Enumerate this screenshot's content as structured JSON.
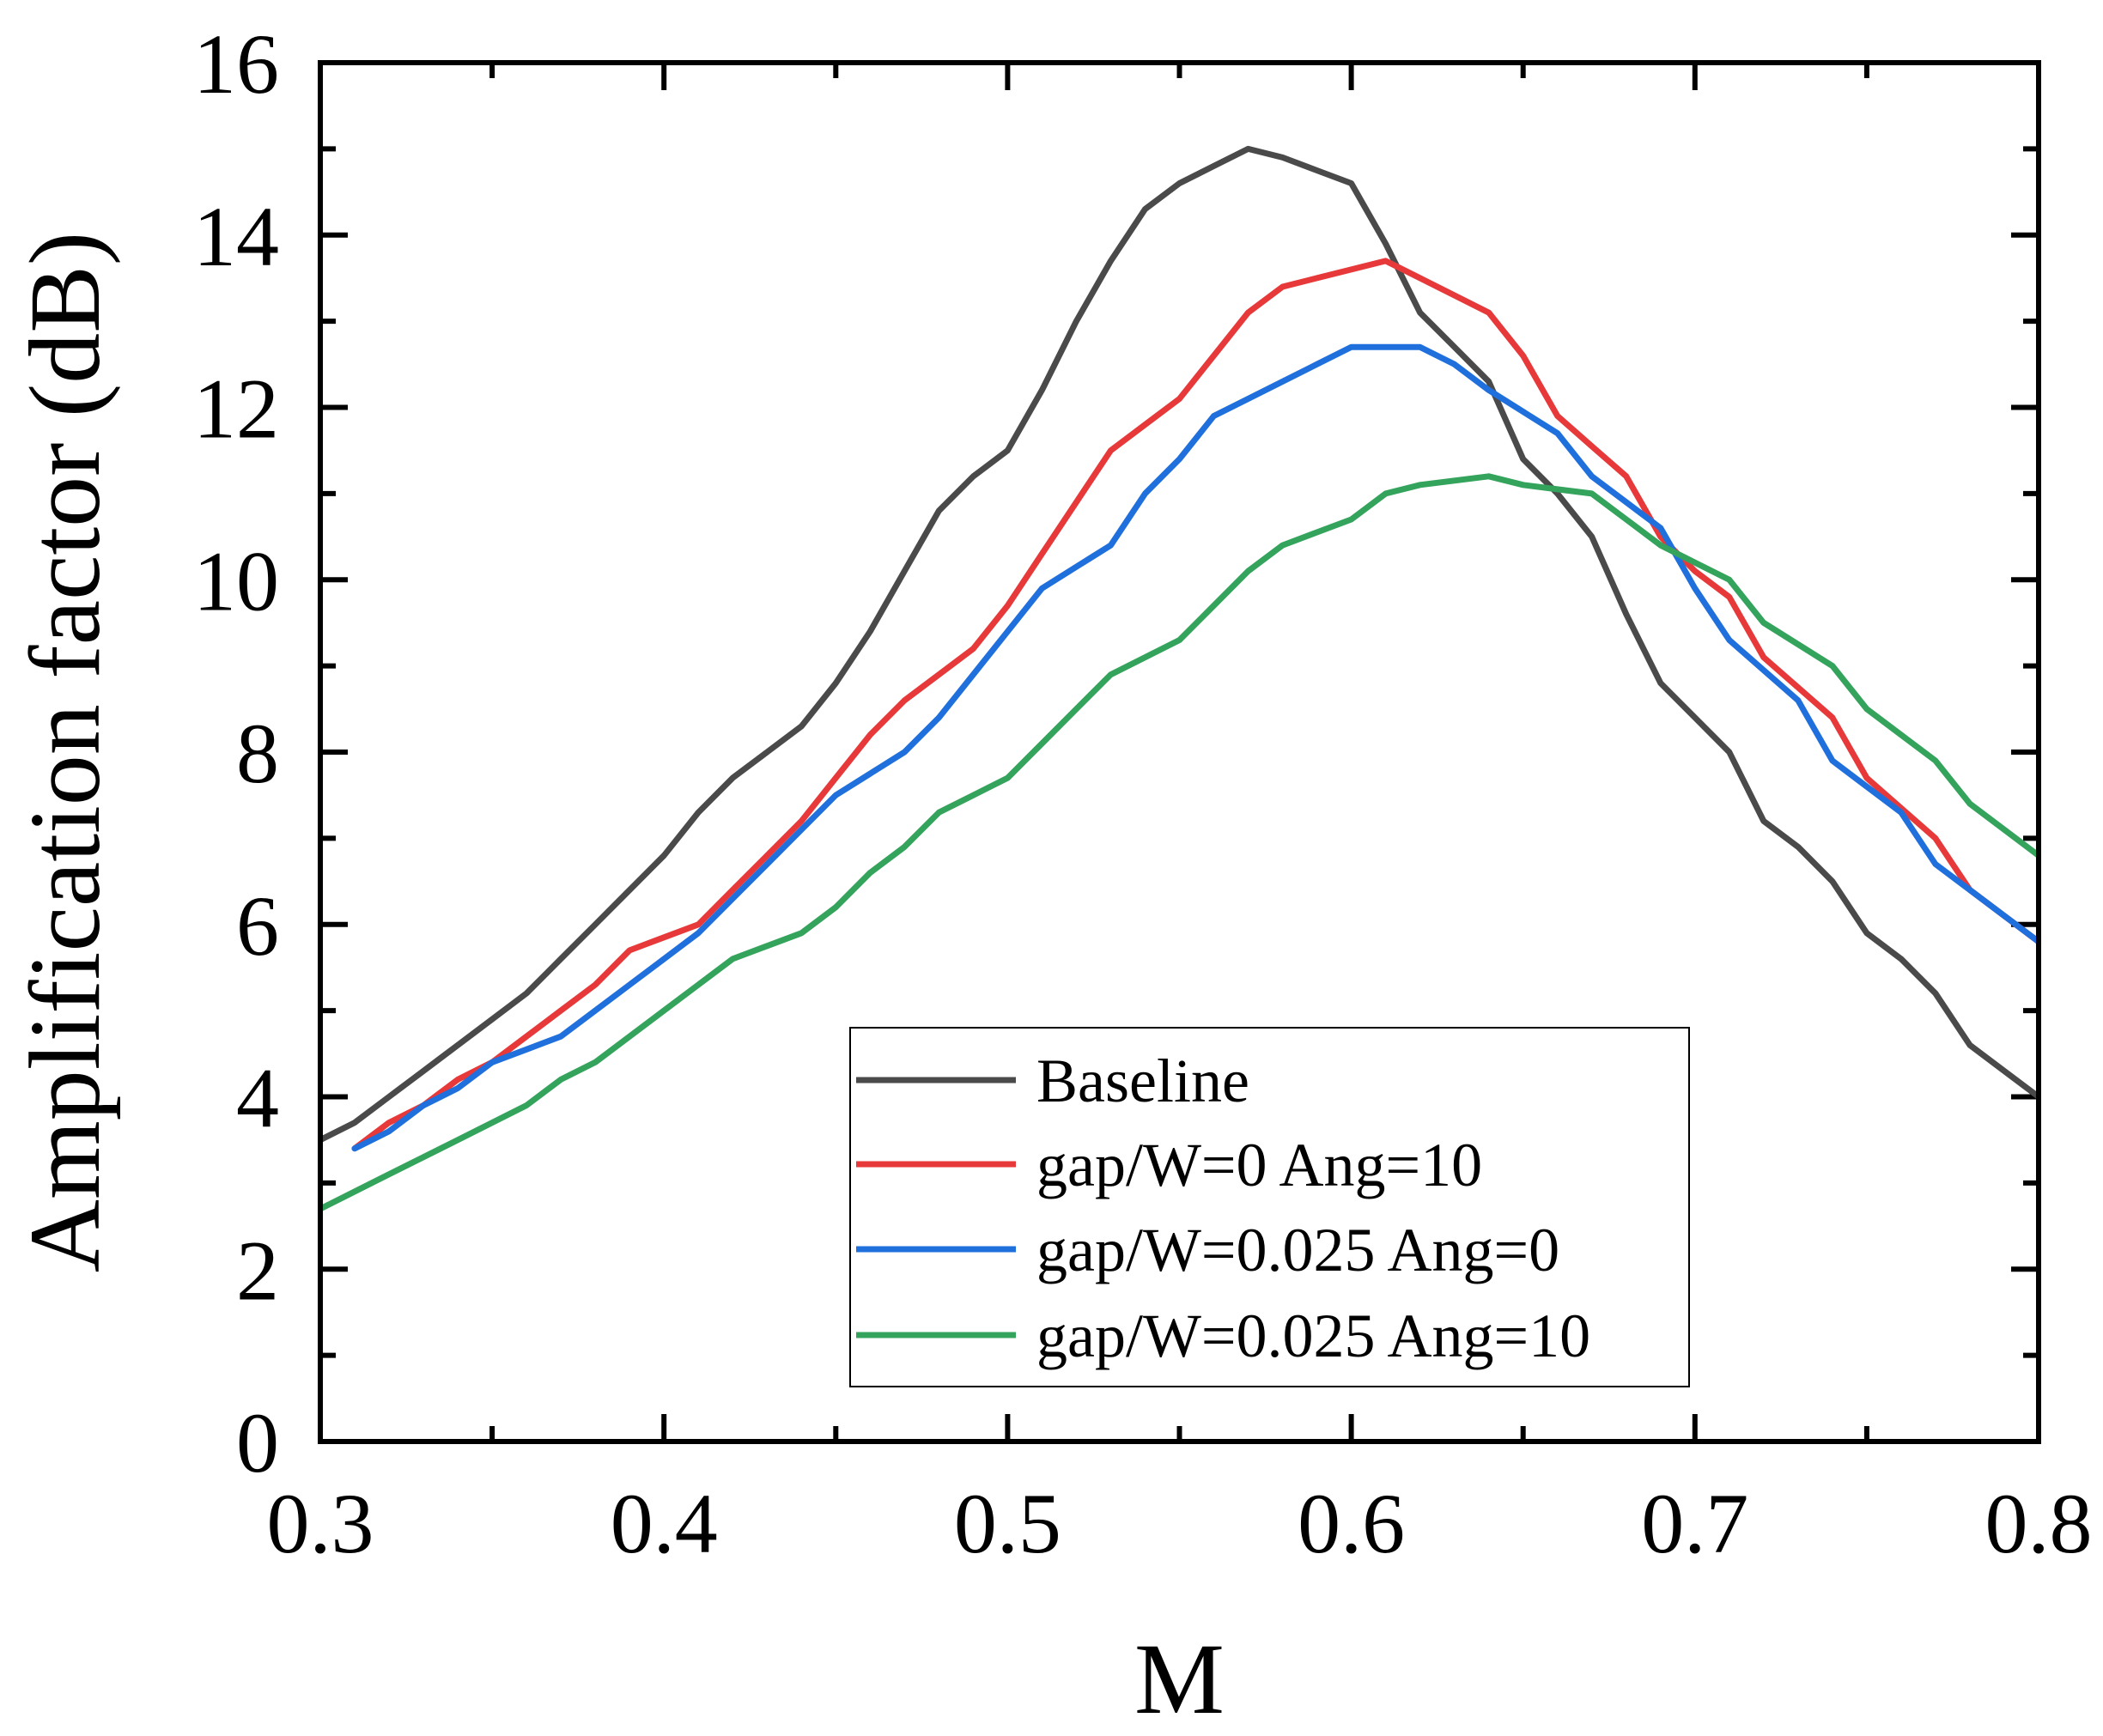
{
  "chart_data": {
    "type": "line",
    "title": "",
    "xlabel": "M",
    "ylabel": "Amplification factor (dB)",
    "xlim": [
      0.3,
      0.8
    ],
    "ylim": [
      0,
      16
    ],
    "xticks": [
      0.3,
      0.4,
      0.5,
      0.6,
      0.7,
      0.8
    ],
    "xtick_labels": [
      "0.3",
      "0.4",
      "0.5",
      "0.6",
      "0.7",
      "0.8"
    ],
    "yticks": [
      0,
      2,
      4,
      6,
      8,
      10,
      12,
      14,
      16
    ],
    "ytick_labels": [
      "0",
      "2",
      "4",
      "6",
      "8",
      "10",
      "12",
      "14",
      "16"
    ],
    "grid": false,
    "legend_position": "bottom-center",
    "series": [
      {
        "name": "Baseline",
        "color": "#4a4a4a",
        "x": [
          0.3,
          0.31,
          0.32,
          0.33,
          0.34,
          0.35,
          0.36,
          0.37,
          0.38,
          0.39,
          0.4,
          0.41,
          0.42,
          0.43,
          0.44,
          0.45,
          0.46,
          0.47,
          0.48,
          0.49,
          0.5,
          0.51,
          0.52,
          0.53,
          0.54,
          0.55,
          0.56,
          0.57,
          0.58,
          0.59,
          0.6,
          0.61,
          0.62,
          0.63,
          0.64,
          0.65,
          0.66,
          0.67,
          0.68,
          0.69,
          0.7,
          0.71,
          0.72,
          0.73,
          0.74,
          0.75,
          0.76,
          0.77,
          0.78,
          0.79,
          0.8
        ],
        "y": [
          3.5,
          3.7,
          4.0,
          4.3,
          4.6,
          4.9,
          5.2,
          5.6,
          6.0,
          6.4,
          6.8,
          7.3,
          7.7,
          8.0,
          8.3,
          8.8,
          9.4,
          10.1,
          10.8,
          11.2,
          11.5,
          12.2,
          13.0,
          13.7,
          14.3,
          14.6,
          14.8,
          15.0,
          14.9,
          14.75,
          14.6,
          13.9,
          13.1,
          12.7,
          12.3,
          11.4,
          11.0,
          10.5,
          9.6,
          8.8,
          8.4,
          8.0,
          7.2,
          6.9,
          6.5,
          5.9,
          5.6,
          5.2,
          4.6,
          4.3,
          4.0
        ]
      },
      {
        "name": "gap/W=0 Ang=10",
        "color": "#e8393a",
        "x": [
          0.31,
          0.32,
          0.33,
          0.34,
          0.35,
          0.36,
          0.37,
          0.38,
          0.39,
          0.4,
          0.41,
          0.42,
          0.43,
          0.44,
          0.45,
          0.46,
          0.47,
          0.48,
          0.49,
          0.5,
          0.51,
          0.52,
          0.53,
          0.54,
          0.55,
          0.56,
          0.57,
          0.58,
          0.59,
          0.6,
          0.61,
          0.62,
          0.63,
          0.64,
          0.65,
          0.66,
          0.67,
          0.68,
          0.69,
          0.7,
          0.71,
          0.72,
          0.73,
          0.74,
          0.75,
          0.76,
          0.77,
          0.78,
          0.79,
          0.8
        ],
        "y": [
          3.4,
          3.7,
          3.9,
          4.2,
          4.4,
          4.7,
          5.0,
          5.3,
          5.7,
          5.85,
          6.0,
          6.4,
          6.8,
          7.2,
          7.7,
          8.2,
          8.6,
          8.9,
          9.2,
          9.7,
          10.3,
          10.9,
          11.5,
          11.8,
          12.1,
          12.6,
          13.1,
          13.4,
          13.5,
          13.6,
          13.7,
          13.5,
          13.3,
          13.1,
          12.6,
          11.9,
          11.55,
          11.2,
          10.5,
          10.1,
          9.8,
          9.1,
          8.75,
          8.4,
          7.7,
          7.35,
          7.0,
          6.4,
          6.1,
          5.8
        ]
      },
      {
        "name": "gap/W=0.025 Ang=0",
        "color": "#1f6fdd",
        "x": [
          0.31,
          0.32,
          0.33,
          0.34,
          0.35,
          0.36,
          0.37,
          0.38,
          0.39,
          0.4,
          0.41,
          0.42,
          0.43,
          0.44,
          0.45,
          0.46,
          0.47,
          0.48,
          0.49,
          0.5,
          0.51,
          0.52,
          0.53,
          0.54,
          0.55,
          0.56,
          0.57,
          0.58,
          0.59,
          0.6,
          0.61,
          0.62,
          0.63,
          0.64,
          0.65,
          0.66,
          0.67,
          0.68,
          0.69,
          0.7,
          0.71,
          0.72,
          0.73,
          0.74,
          0.75,
          0.76,
          0.77,
          0.78,
          0.79,
          0.8
        ],
        "y": [
          3.4,
          3.6,
          3.9,
          4.1,
          4.4,
          4.55,
          4.7,
          5.0,
          5.3,
          5.6,
          5.9,
          6.3,
          6.7,
          7.1,
          7.5,
          7.75,
          8.0,
          8.4,
          8.9,
          9.4,
          9.9,
          10.15,
          10.4,
          11.0,
          11.4,
          11.9,
          12.1,
          12.3,
          12.5,
          12.7,
          12.7,
          12.7,
          12.5,
          12.2,
          11.95,
          11.7,
          11.2,
          10.9,
          10.6,
          9.9,
          9.3,
          8.95,
          8.6,
          7.9,
          7.6,
          7.3,
          6.7,
          6.4,
          6.1,
          5.8
        ]
      },
      {
        "name": "gap/W=0.025 Ang=10",
        "color": "#34a35c",
        "x": [
          0.3,
          0.31,
          0.32,
          0.33,
          0.34,
          0.35,
          0.36,
          0.37,
          0.38,
          0.39,
          0.4,
          0.41,
          0.42,
          0.43,
          0.44,
          0.45,
          0.46,
          0.47,
          0.48,
          0.49,
          0.5,
          0.51,
          0.52,
          0.53,
          0.54,
          0.55,
          0.56,
          0.57,
          0.58,
          0.59,
          0.6,
          0.61,
          0.62,
          0.63,
          0.64,
          0.65,
          0.66,
          0.67,
          0.68,
          0.69,
          0.7,
          0.71,
          0.72,
          0.73,
          0.74,
          0.75,
          0.76,
          0.77,
          0.78,
          0.79,
          0.8
        ],
        "y": [
          2.7,
          2.9,
          3.1,
          3.3,
          3.5,
          3.7,
          3.9,
          4.2,
          4.4,
          4.7,
          5.0,
          5.3,
          5.6,
          5.75,
          5.9,
          6.2,
          6.6,
          6.9,
          7.3,
          7.5,
          7.7,
          8.1,
          8.5,
          8.9,
          9.1,
          9.3,
          9.7,
          10.1,
          10.4,
          10.55,
          10.7,
          11.0,
          11.1,
          11.15,
          11.2,
          11.1,
          11.05,
          11.0,
          10.7,
          10.4,
          10.2,
          10.0,
          9.5,
          9.25,
          9.0,
          8.5,
          8.2,
          7.9,
          7.4,
          7.1,
          6.8
        ]
      }
    ]
  }
}
